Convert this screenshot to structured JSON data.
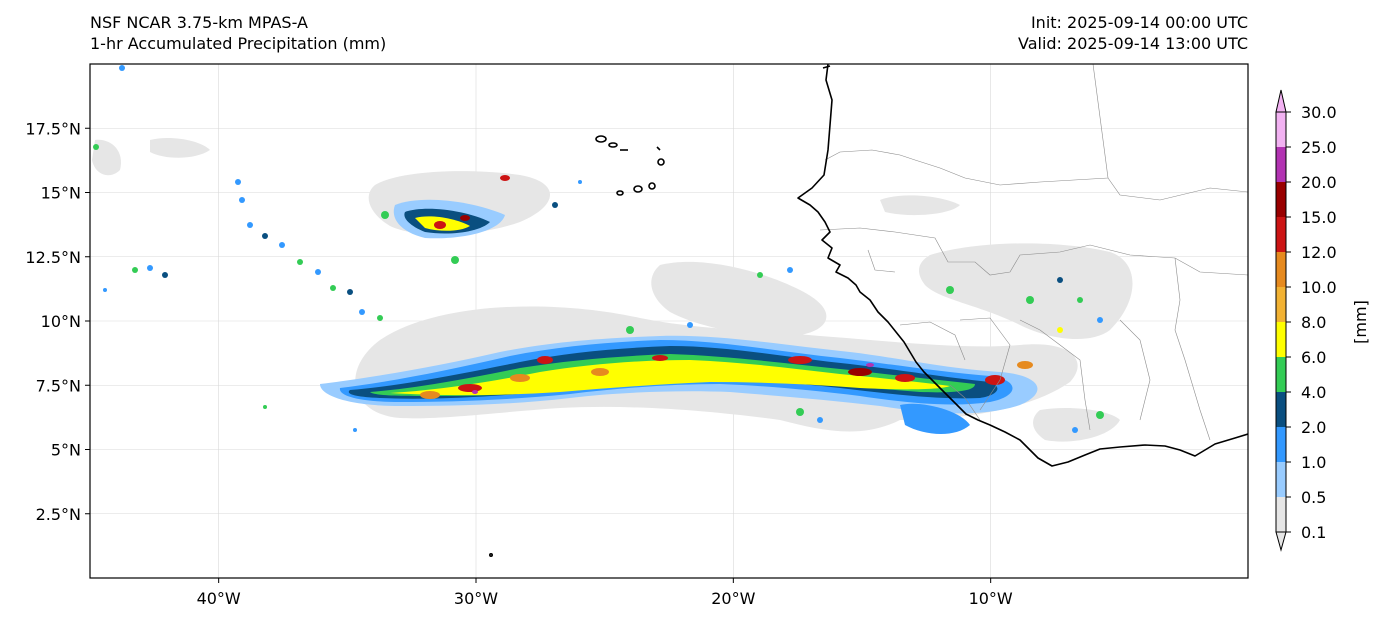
{
  "header": {
    "model": "NSF NCAR 3.75-km MPAS-A",
    "field": "1-hr Accumulated Precipitation (mm)",
    "init": "Init: 2025-09-14 00:00 UTC",
    "valid": "Valid: 2025-09-14 13:00 UTC"
  },
  "map": {
    "lon_range": [
      -45,
      0
    ],
    "lat_range": [
      0,
      20
    ],
    "lon_ticks": [
      {
        "value": -40,
        "label": "40°W"
      },
      {
        "value": -30,
        "label": "30°W"
      },
      {
        "value": -20,
        "label": "20°W"
      },
      {
        "value": -10,
        "label": "10°W"
      }
    ],
    "lat_ticks": [
      {
        "value": 2.5,
        "label": "2.5°N"
      },
      {
        "value": 5,
        "label": "5°N"
      },
      {
        "value": 7.5,
        "label": "7.5°N"
      },
      {
        "value": 10,
        "label": "10°N"
      },
      {
        "value": 12.5,
        "label": "12.5°N"
      },
      {
        "value": 15,
        "label": "15°N"
      },
      {
        "value": 17.5,
        "label": "17.5°N"
      }
    ]
  },
  "colorbar": {
    "label": "[mm]",
    "levels": [
      "0.1",
      "0.5",
      "1.0",
      "2.0",
      "4.0",
      "6.0",
      "8.0",
      "10.0",
      "12.0",
      "15.0",
      "20.0",
      "25.0",
      "30.0"
    ],
    "colors": [
      "#e6e6e6",
      "#99ccff",
      "#3399ff",
      "#0a4f80",
      "#33cc55",
      "#ffff00",
      "#f2b233",
      "#e68a1f",
      "#cc1414",
      "#990000",
      "#b233b2",
      "#f2b2f2"
    ]
  },
  "colors": {
    "coast": "#000000",
    "border": "#8c8c8c",
    "grid": "#d9d9d9"
  }
}
